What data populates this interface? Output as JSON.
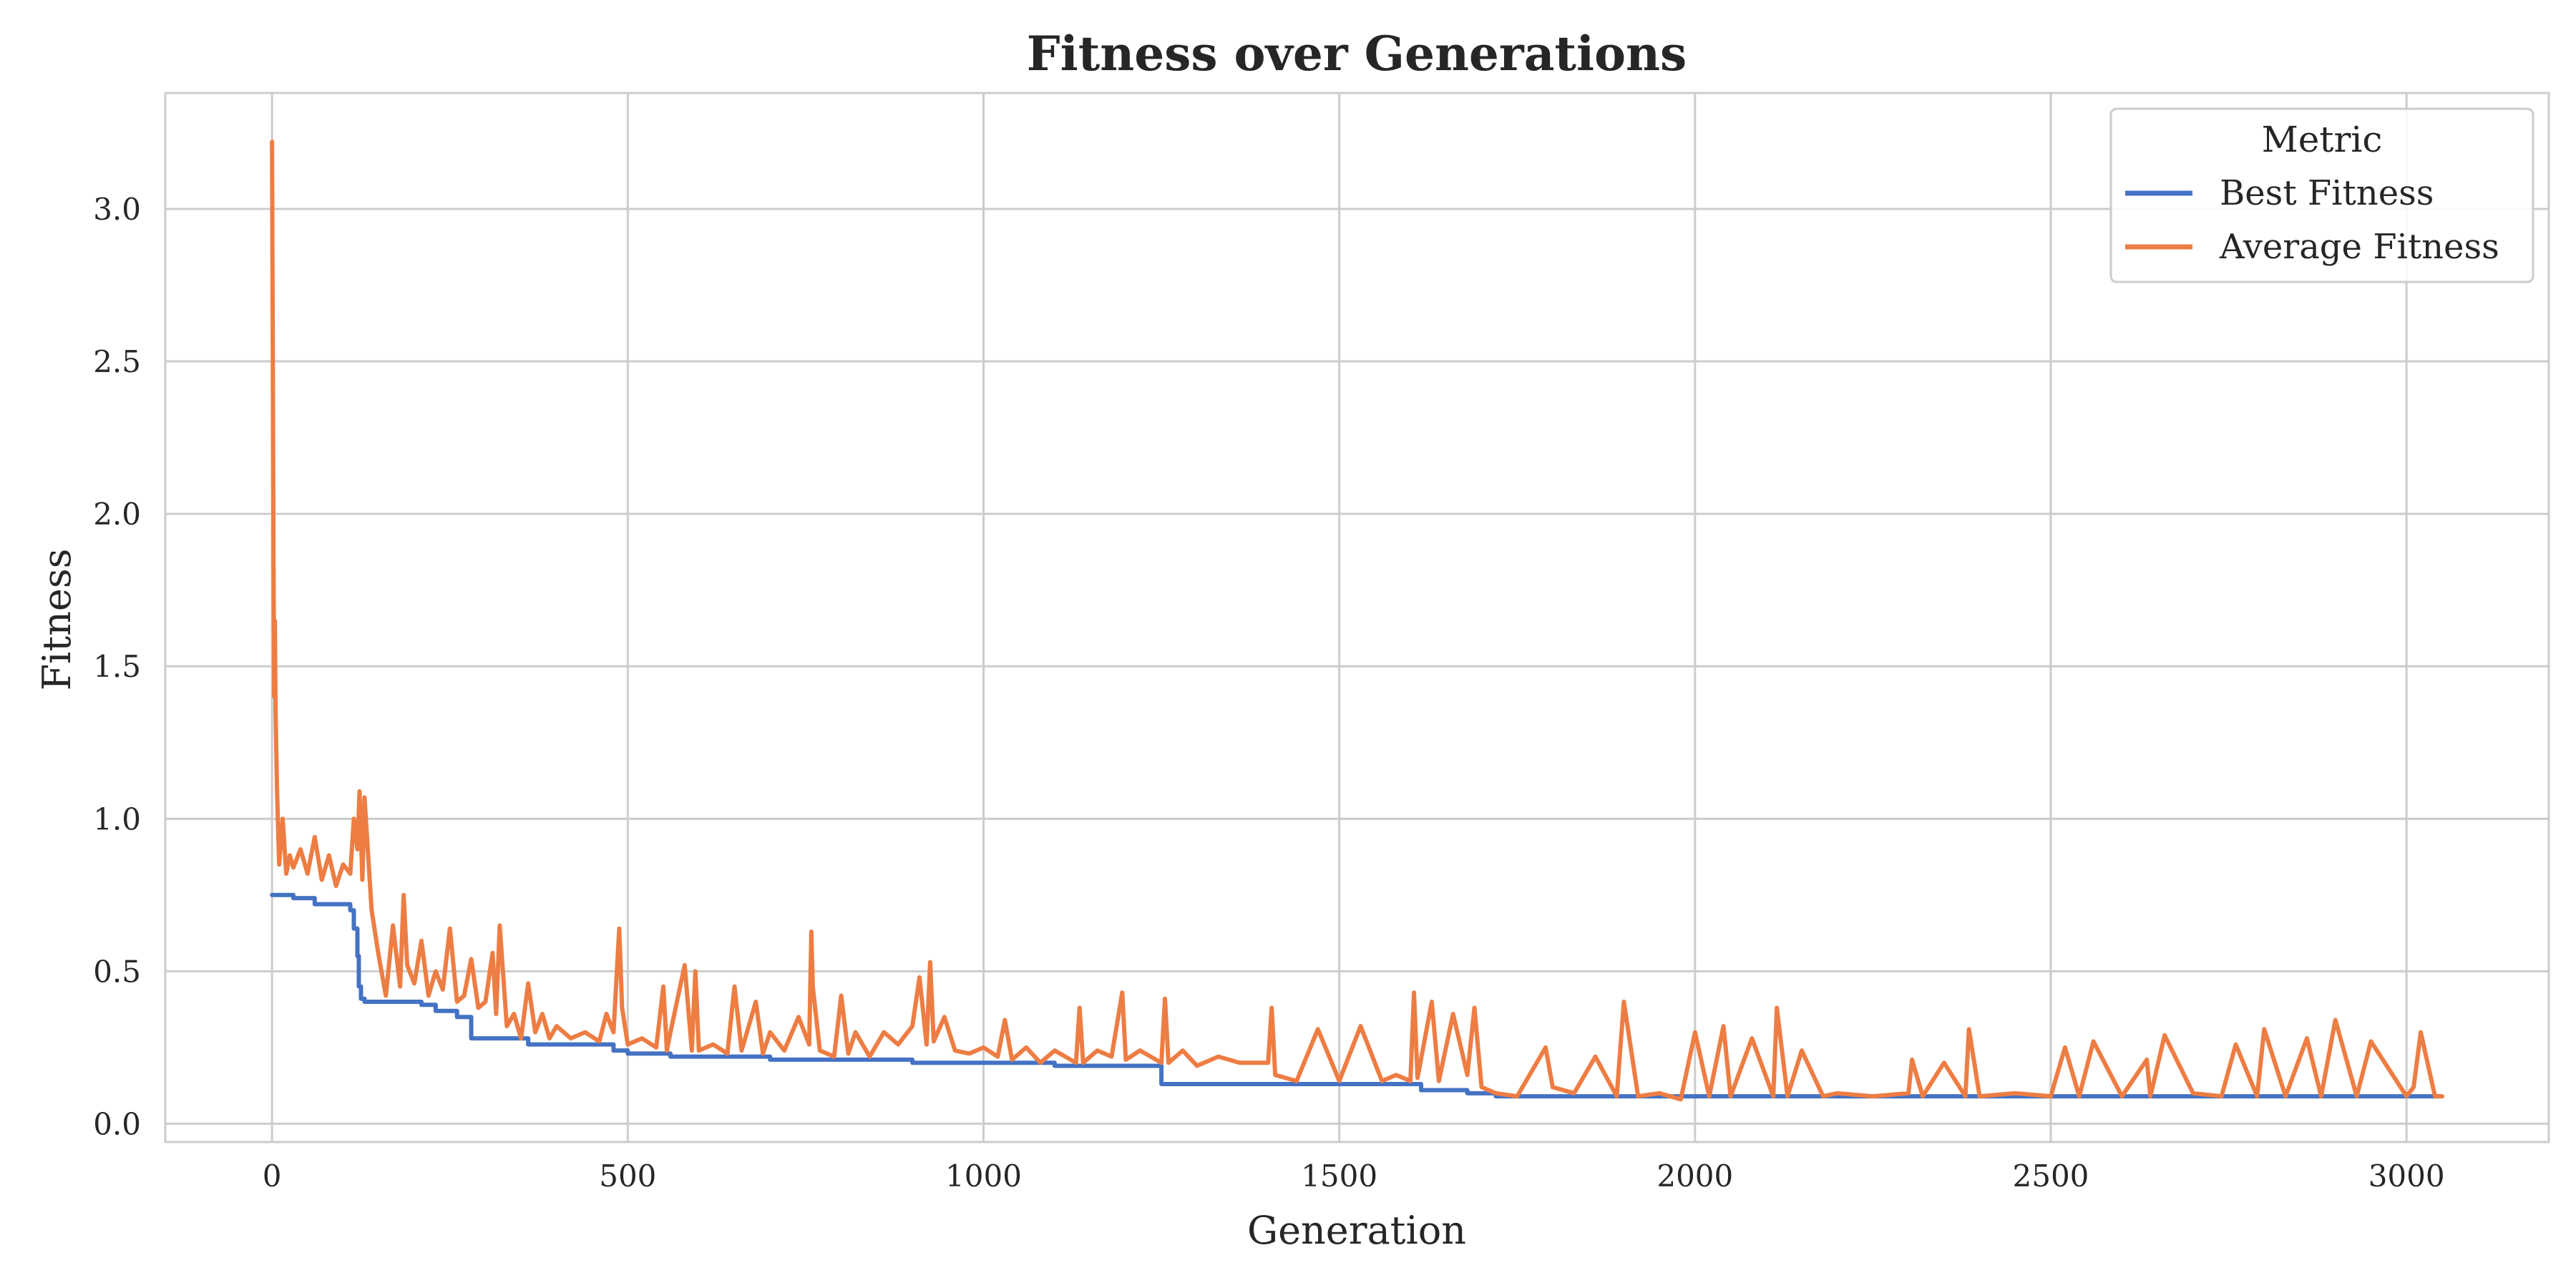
{
  "chart_data": {
    "type": "line",
    "title": "Fitness over Generations",
    "xlabel": "Generation",
    "ylabel": "Fitness",
    "xlim": [
      -150,
      3200
    ],
    "ylim": [
      -0.06,
      3.38
    ],
    "xticks": [
      0,
      500,
      1000,
      1500,
      2000,
      2500,
      3000
    ],
    "yticks": [
      0.0,
      0.5,
      1.0,
      1.5,
      2.0,
      2.5,
      3.0
    ],
    "xtick_labels": [
      "0",
      "500",
      "1000",
      "1500",
      "2000",
      "2500",
      "3000"
    ],
    "ytick_labels": [
      "0.0",
      "0.5",
      "1.0",
      "1.5",
      "2.0",
      "2.5",
      "3.0"
    ],
    "grid": true,
    "legend": {
      "title": "Metric",
      "placement": "top-right",
      "entries": [
        "Best Fitness",
        "Average Fitness"
      ]
    },
    "colors": {
      "best": "#4472c4",
      "average": "#ed7d43",
      "grid": "#cccccc",
      "text": "#262626"
    },
    "series": [
      {
        "name": "Best Fitness",
        "x": [
          0,
          30,
          60,
          110,
          115,
          120,
          122,
          125,
          130,
          210,
          230,
          260,
          280,
          320,
          360,
          480,
          500,
          560,
          700,
          900,
          1100,
          1250,
          1615,
          1680,
          1720,
          3050
        ],
        "y": [
          0.75,
          0.74,
          0.72,
          0.7,
          0.64,
          0.55,
          0.45,
          0.41,
          0.4,
          0.39,
          0.37,
          0.35,
          0.28,
          0.28,
          0.26,
          0.24,
          0.23,
          0.22,
          0.21,
          0.2,
          0.19,
          0.13,
          0.11,
          0.1,
          0.09,
          0.09
        ]
      },
      {
        "name": "Average Fitness",
        "x": [
          0,
          1,
          2,
          3,
          4,
          5,
          7,
          10,
          15,
          20,
          25,
          30,
          40,
          50,
          60,
          70,
          80,
          90,
          100,
          110,
          115,
          120,
          123,
          127,
          130,
          140,
          150,
          160,
          170,
          180,
          185,
          190,
          200,
          210,
          220,
          230,
          240,
          250,
          260,
          270,
          280,
          290,
          300,
          310,
          315,
          320,
          330,
          340,
          350,
          360,
          370,
          380,
          390,
          400,
          420,
          440,
          460,
          470,
          480,
          488,
          492,
          500,
          520,
          540,
          550,
          555,
          560,
          580,
          590,
          595,
          600,
          620,
          640,
          650,
          660,
          680,
          690,
          700,
          720,
          740,
          755,
          758,
          760,
          770,
          790,
          800,
          810,
          820,
          840,
          860,
          880,
          900,
          910,
          920,
          925,
          930,
          945,
          960,
          980,
          1000,
          1020,
          1030,
          1040,
          1060,
          1080,
          1100,
          1130,
          1135,
          1140,
          1160,
          1180,
          1195,
          1200,
          1220,
          1250,
          1255,
          1260,
          1280,
          1300,
          1330,
          1360,
          1400,
          1405,
          1410,
          1440,
          1470,
          1500,
          1530,
          1560,
          1580,
          1600,
          1605,
          1610,
          1630,
          1640,
          1660,
          1680,
          1690,
          1700,
          1720,
          1750,
          1790,
          1800,
          1830,
          1860,
          1890,
          1900,
          1920,
          1950,
          1980,
          2000,
          2020,
          2040,
          2050,
          2080,
          2110,
          2115,
          2130,
          2150,
          2180,
          2200,
          2250,
          2300,
          2305,
          2320,
          2350,
          2380,
          2385,
          2400,
          2450,
          2500,
          2520,
          2540,
          2560,
          2600,
          2635,
          2640,
          2660,
          2700,
          2740,
          2760,
          2790,
          2800,
          2830,
          2860,
          2880,
          2900,
          2930,
          2950,
          3000,
          3010,
          3020,
          3040,
          3050
        ],
        "y": [
          3.22,
          2.6,
          1.9,
          1.4,
          1.65,
          1.35,
          1.1,
          0.85,
          1.0,
          0.82,
          0.88,
          0.84,
          0.9,
          0.82,
          0.94,
          0.8,
          0.88,
          0.78,
          0.85,
          0.82,
          1.0,
          0.9,
          1.09,
          0.8,
          1.07,
          0.7,
          0.55,
          0.42,
          0.65,
          0.45,
          0.75,
          0.52,
          0.46,
          0.6,
          0.42,
          0.5,
          0.44,
          0.64,
          0.4,
          0.42,
          0.54,
          0.38,
          0.4,
          0.56,
          0.36,
          0.65,
          0.32,
          0.36,
          0.28,
          0.46,
          0.3,
          0.36,
          0.28,
          0.32,
          0.28,
          0.3,
          0.27,
          0.36,
          0.3,
          0.64,
          0.38,
          0.26,
          0.28,
          0.25,
          0.45,
          0.24,
          0.3,
          0.52,
          0.24,
          0.5,
          0.24,
          0.26,
          0.23,
          0.45,
          0.24,
          0.4,
          0.23,
          0.3,
          0.24,
          0.35,
          0.26,
          0.63,
          0.45,
          0.24,
          0.22,
          0.42,
          0.23,
          0.3,
          0.22,
          0.3,
          0.26,
          0.32,
          0.48,
          0.26,
          0.53,
          0.27,
          0.35,
          0.24,
          0.23,
          0.25,
          0.22,
          0.34,
          0.21,
          0.25,
          0.2,
          0.24,
          0.2,
          0.38,
          0.2,
          0.24,
          0.22,
          0.43,
          0.21,
          0.24,
          0.2,
          0.41,
          0.2,
          0.24,
          0.19,
          0.22,
          0.2,
          0.2,
          0.38,
          0.16,
          0.14,
          0.31,
          0.14,
          0.32,
          0.14,
          0.16,
          0.14,
          0.43,
          0.15,
          0.4,
          0.14,
          0.36,
          0.16,
          0.38,
          0.12,
          0.1,
          0.09,
          0.25,
          0.12,
          0.1,
          0.22,
          0.09,
          0.4,
          0.09,
          0.1,
          0.08,
          0.3,
          0.09,
          0.32,
          0.09,
          0.28,
          0.09,
          0.38,
          0.09,
          0.24,
          0.09,
          0.1,
          0.09,
          0.1,
          0.21,
          0.09,
          0.2,
          0.09,
          0.31,
          0.09,
          0.1,
          0.09,
          0.25,
          0.09,
          0.27,
          0.09,
          0.21,
          0.09,
          0.29,
          0.1,
          0.09,
          0.26,
          0.09,
          0.31,
          0.09,
          0.28,
          0.09,
          0.34,
          0.09,
          0.27,
          0.09,
          0.12,
          0.3,
          0.09,
          0.09
        ]
      }
    ]
  }
}
